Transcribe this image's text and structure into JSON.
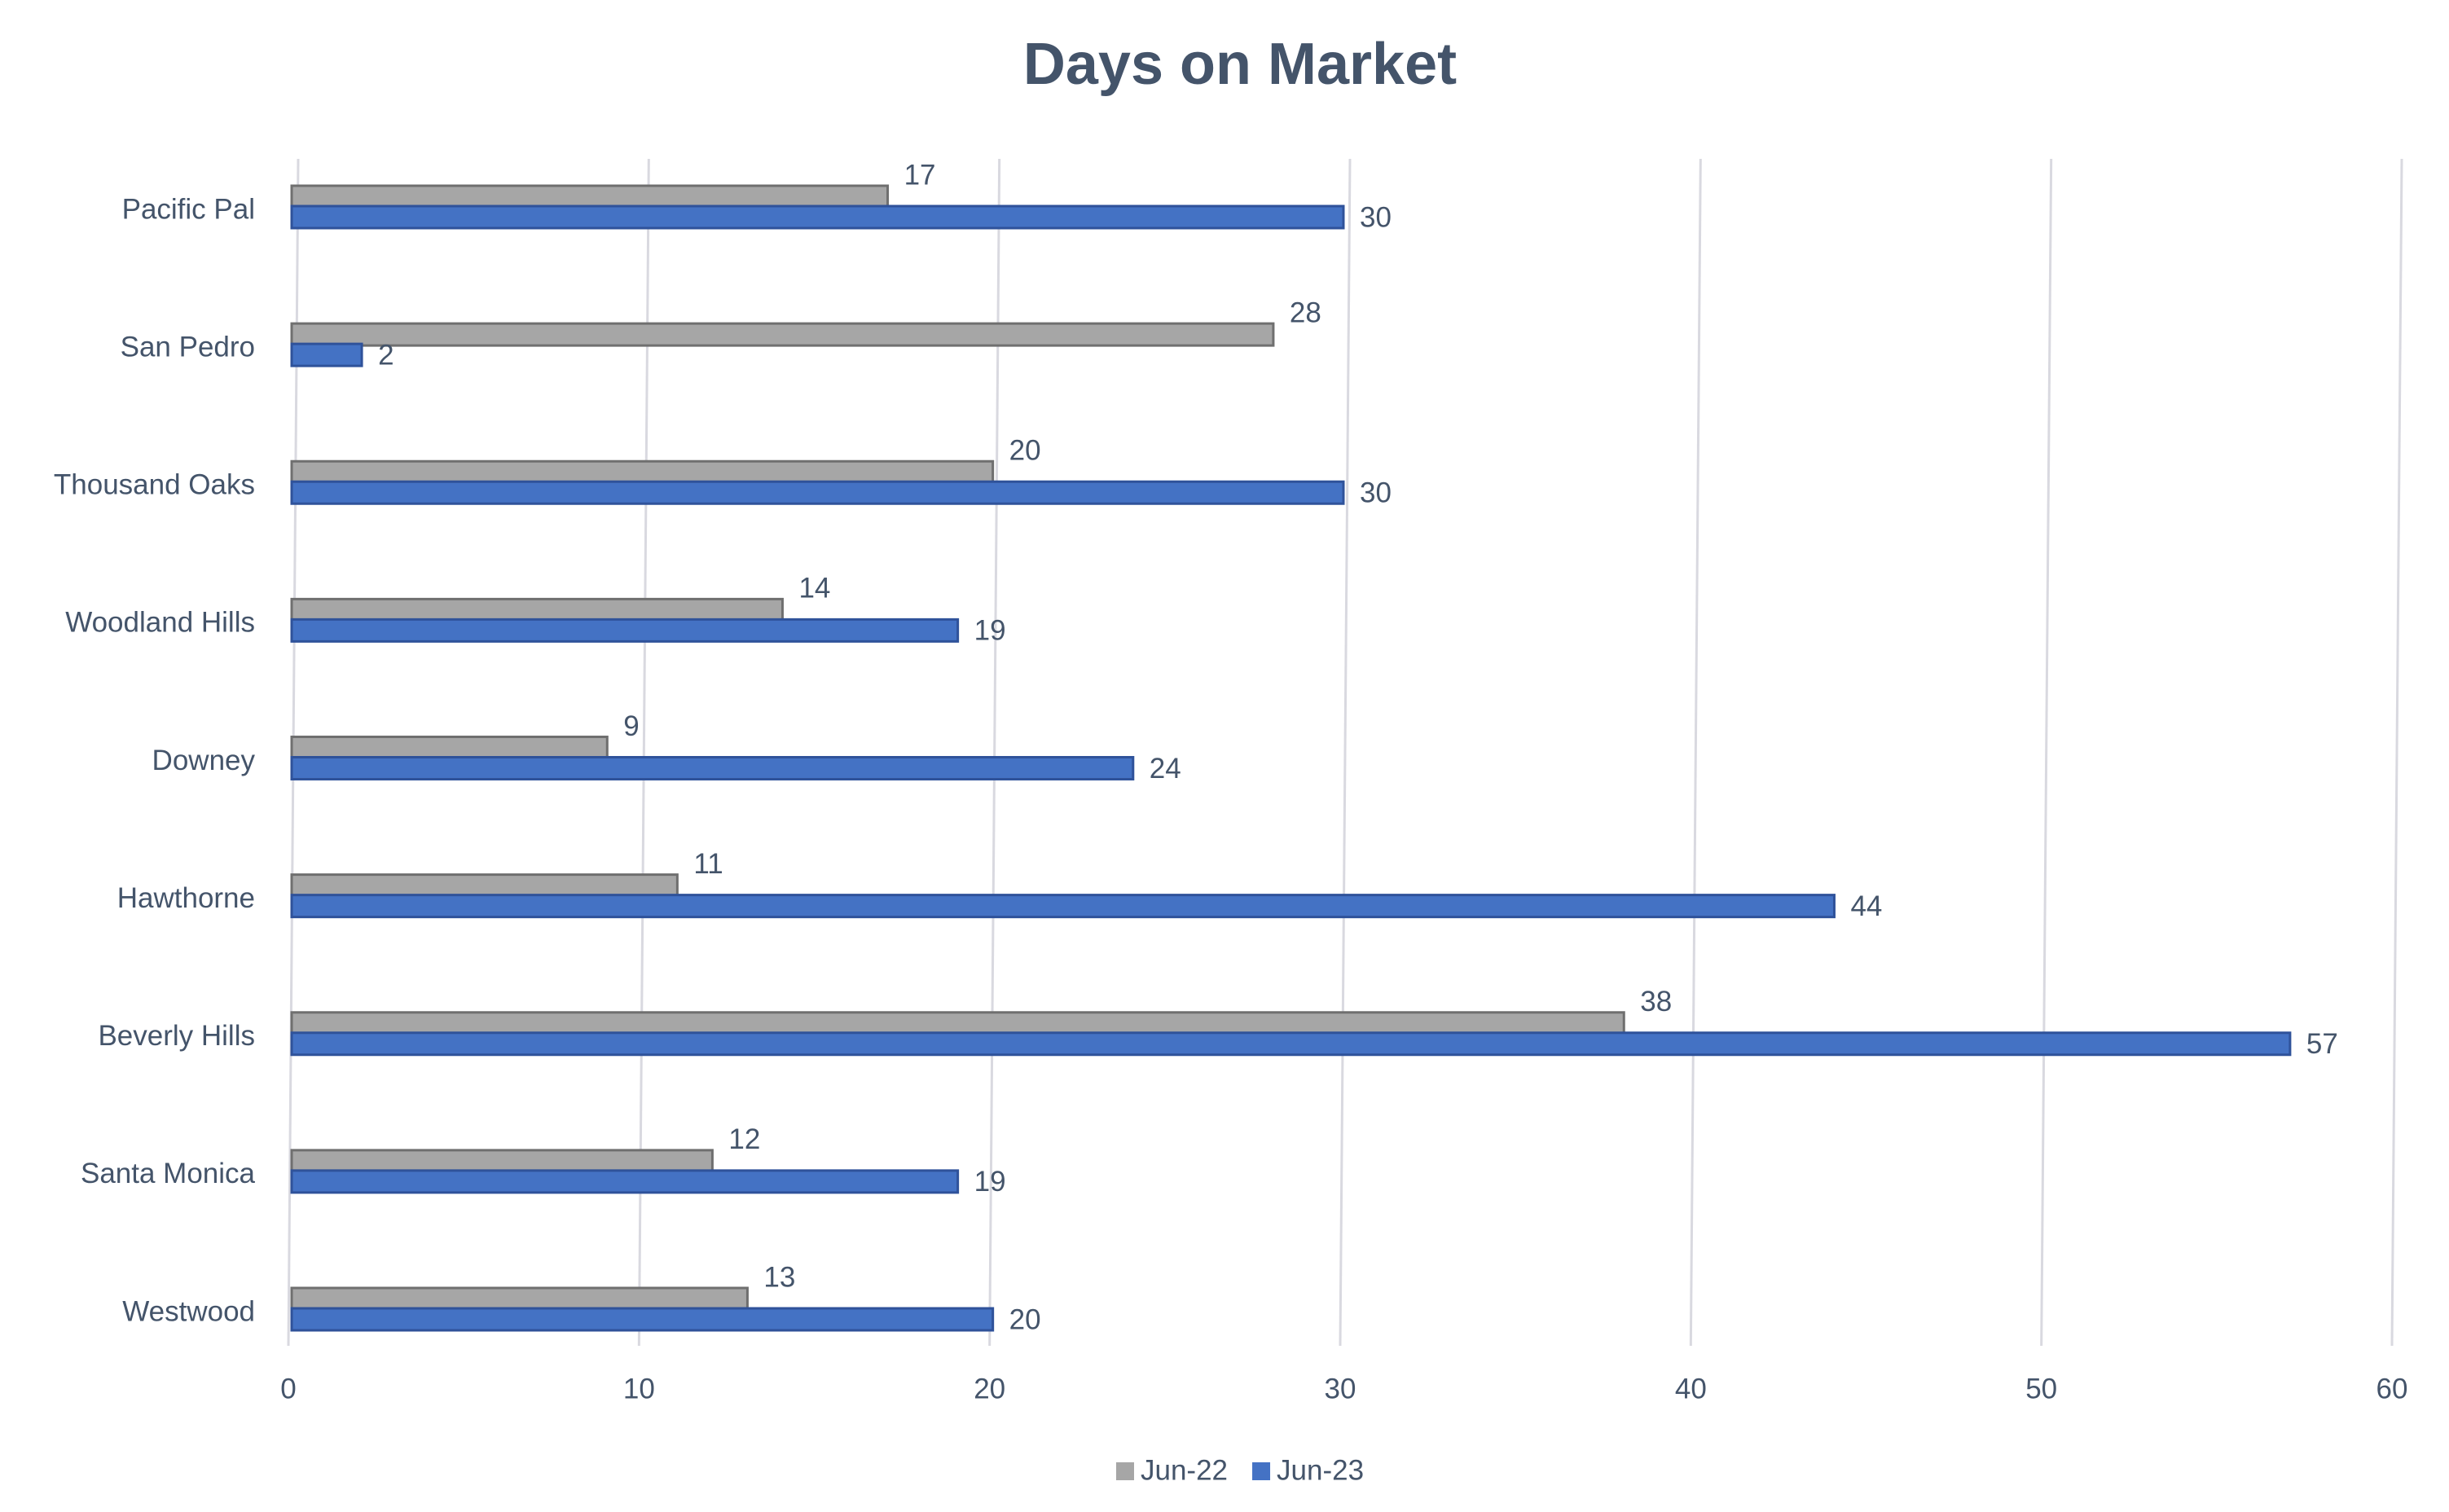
{
  "chart_data": {
    "type": "hbar",
    "title": "Days on Market",
    "categories": [
      "Pacific Pal",
      "San Pedro",
      "Thousand Oaks",
      "Woodland Hills",
      "Downey",
      "Hawthorne",
      "Beverly Hills",
      "Santa Monica",
      "Westwood"
    ],
    "series": [
      {
        "name": "Jun-22",
        "color": "#a6a6a6",
        "values": [
          17,
          28,
          20,
          14,
          9,
          11,
          38,
          12,
          13
        ]
      },
      {
        "name": "Jun-23",
        "color": "#4472c4",
        "values": [
          30,
          2,
          30,
          19,
          24,
          44,
          57,
          19,
          20
        ]
      }
    ],
    "xlim": [
      0,
      60
    ],
    "xticks": [
      0,
      10,
      20,
      30,
      40,
      50,
      60
    ],
    "grid": true,
    "legend": "bottom"
  }
}
